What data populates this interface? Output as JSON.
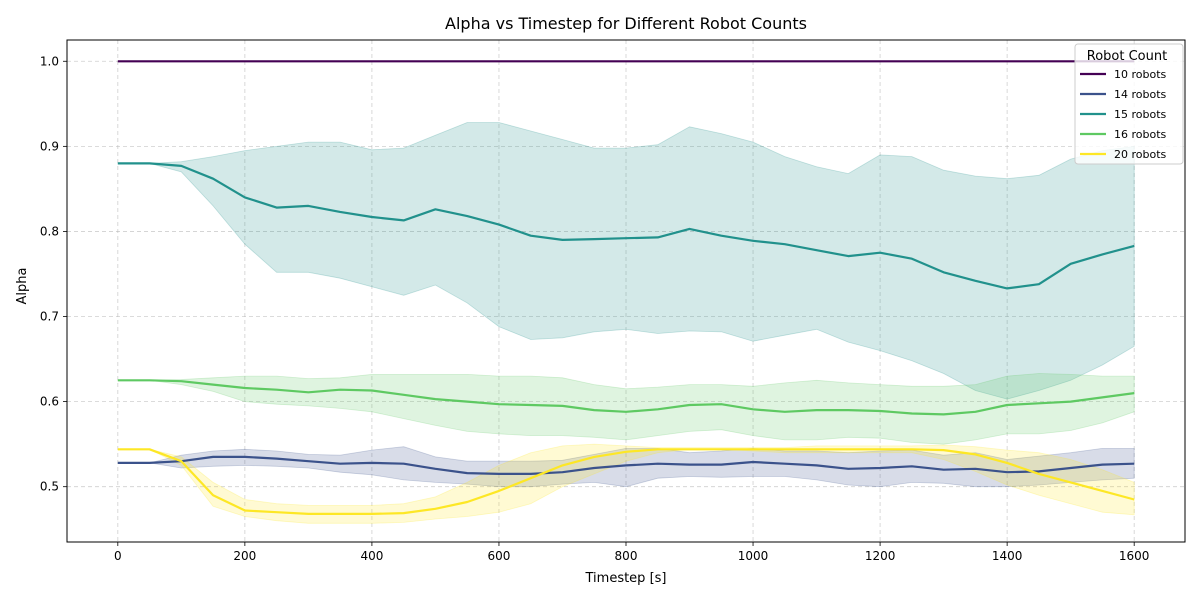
{
  "chart_data": {
    "type": "line",
    "title": "Alpha vs Timestep for Different Robot Counts",
    "xlabel": "Timestep [s]",
    "ylabel": "Alpha",
    "xlim": [
      -80,
      1680
    ],
    "ylim": [
      0.435,
      1.025
    ],
    "xticks": [
      0,
      200,
      400,
      600,
      800,
      1000,
      1200,
      1400,
      1600
    ],
    "yticks": [
      0.5,
      0.6,
      0.7,
      0.8,
      0.9,
      1.0
    ],
    "grid": true,
    "legend": {
      "title": "Robot Count",
      "placement": "top-right"
    },
    "x": [
      0,
      50,
      100,
      150,
      200,
      250,
      300,
      350,
      400,
      450,
      500,
      550,
      600,
      650,
      700,
      750,
      800,
      850,
      900,
      950,
      1000,
      1050,
      1100,
      1150,
      1200,
      1250,
      1300,
      1350,
      1400,
      1450,
      1500,
      1550,
      1600
    ],
    "series": [
      {
        "name": "10 robots",
        "color": "#440154",
        "values": [
          1.0,
          1.0,
          1.0,
          1.0,
          1.0,
          1.0,
          1.0,
          1.0,
          1.0,
          1.0,
          1.0,
          1.0,
          1.0,
          1.0,
          1.0,
          1.0,
          1.0,
          1.0,
          1.0,
          1.0,
          1.0,
          1.0,
          1.0,
          1.0,
          1.0,
          1.0,
          1.0,
          1.0,
          1.0,
          1.0,
          1.0,
          1.0,
          1.0
        ],
        "lower": [
          1.0,
          1.0,
          1.0,
          1.0,
          1.0,
          1.0,
          1.0,
          1.0,
          1.0,
          1.0,
          1.0,
          1.0,
          1.0,
          1.0,
          1.0,
          1.0,
          1.0,
          1.0,
          1.0,
          1.0,
          1.0,
          1.0,
          1.0,
          1.0,
          1.0,
          1.0,
          1.0,
          1.0,
          1.0,
          1.0,
          1.0,
          1.0,
          1.0
        ],
        "upper": [
          1.0,
          1.0,
          1.0,
          1.0,
          1.0,
          1.0,
          1.0,
          1.0,
          1.0,
          1.0,
          1.0,
          1.0,
          1.0,
          1.0,
          1.0,
          1.0,
          1.0,
          1.0,
          1.0,
          1.0,
          1.0,
          1.0,
          1.0,
          1.0,
          1.0,
          1.0,
          1.0,
          1.0,
          1.0,
          1.0,
          1.0,
          1.0,
          1.0
        ]
      },
      {
        "name": "14 robots",
        "color": "#3b528b",
        "values": [
          0.528,
          0.528,
          0.53,
          0.535,
          0.535,
          0.533,
          0.53,
          0.527,
          0.528,
          0.527,
          0.521,
          0.516,
          0.515,
          0.515,
          0.517,
          0.522,
          0.525,
          0.527,
          0.526,
          0.526,
          0.529,
          0.527,
          0.525,
          0.521,
          0.522,
          0.524,
          0.52,
          0.521,
          0.517,
          0.518,
          0.522,
          0.526,
          0.527
        ],
        "lower": [
          0.528,
          0.528,
          0.522,
          0.524,
          0.525,
          0.524,
          0.522,
          0.517,
          0.514,
          0.508,
          0.505,
          0.503,
          0.5,
          0.5,
          0.503,
          0.505,
          0.5,
          0.51,
          0.512,
          0.511,
          0.512,
          0.512,
          0.508,
          0.502,
          0.5,
          0.505,
          0.504,
          0.5,
          0.5,
          0.502,
          0.505,
          0.508,
          0.51
        ],
        "upper": [
          0.528,
          0.528,
          0.537,
          0.542,
          0.544,
          0.542,
          0.538,
          0.537,
          0.543,
          0.547,
          0.535,
          0.53,
          0.53,
          0.53,
          0.531,
          0.538,
          0.545,
          0.545,
          0.54,
          0.542,
          0.545,
          0.542,
          0.542,
          0.54,
          0.542,
          0.543,
          0.537,
          0.54,
          0.532,
          0.536,
          0.54,
          0.545,
          0.545
        ]
      },
      {
        "name": "15 robots",
        "color": "#21918c",
        "values": [
          0.88,
          0.88,
          0.877,
          0.862,
          0.84,
          0.828,
          0.83,
          0.823,
          0.817,
          0.813,
          0.826,
          0.818,
          0.808,
          0.795,
          0.79,
          0.791,
          0.792,
          0.793,
          0.803,
          0.795,
          0.789,
          0.785,
          0.778,
          0.771,
          0.775,
          0.768,
          0.752,
          0.742,
          0.733,
          0.738,
          0.762,
          0.773,
          0.783
        ],
        "lower": [
          0.88,
          0.88,
          0.87,
          0.83,
          0.785,
          0.752,
          0.752,
          0.745,
          0.735,
          0.725,
          0.737,
          0.716,
          0.688,
          0.673,
          0.675,
          0.682,
          0.685,
          0.68,
          0.683,
          0.682,
          0.671,
          0.678,
          0.685,
          0.67,
          0.66,
          0.648,
          0.633,
          0.613,
          0.603,
          0.613,
          0.625,
          0.643,
          0.665
        ],
        "upper": [
          0.88,
          0.88,
          0.882,
          0.888,
          0.895,
          0.9,
          0.905,
          0.905,
          0.896,
          0.898,
          0.913,
          0.928,
          0.928,
          0.918,
          0.908,
          0.898,
          0.898,
          0.902,
          0.923,
          0.915,
          0.905,
          0.888,
          0.876,
          0.868,
          0.89,
          0.888,
          0.872,
          0.865,
          0.862,
          0.866,
          0.885,
          0.895,
          0.9
        ]
      },
      {
        "name": "16 robots",
        "color": "#5ec962",
        "values": [
          0.625,
          0.625,
          0.624,
          0.62,
          0.616,
          0.614,
          0.611,
          0.614,
          0.613,
          0.608,
          0.603,
          0.6,
          0.597,
          0.596,
          0.595,
          0.59,
          0.588,
          0.591,
          0.596,
          0.597,
          0.591,
          0.588,
          0.59,
          0.59,
          0.589,
          0.586,
          0.585,
          0.588,
          0.596,
          0.598,
          0.6,
          0.605,
          0.61
        ],
        "lower": [
          0.625,
          0.625,
          0.62,
          0.612,
          0.6,
          0.597,
          0.595,
          0.592,
          0.588,
          0.58,
          0.572,
          0.565,
          0.562,
          0.56,
          0.56,
          0.558,
          0.555,
          0.56,
          0.565,
          0.567,
          0.56,
          0.555,
          0.555,
          0.558,
          0.557,
          0.552,
          0.55,
          0.555,
          0.562,
          0.562,
          0.566,
          0.575,
          0.588
        ],
        "upper": [
          0.625,
          0.625,
          0.626,
          0.628,
          0.63,
          0.63,
          0.627,
          0.628,
          0.632,
          0.632,
          0.632,
          0.632,
          0.63,
          0.63,
          0.628,
          0.62,
          0.615,
          0.617,
          0.62,
          0.62,
          0.618,
          0.622,
          0.625,
          0.622,
          0.62,
          0.618,
          0.618,
          0.62,
          0.63,
          0.633,
          0.632,
          0.63,
          0.63
        ]
      },
      {
        "name": "20 robots",
        "color": "#fde725",
        "values": [
          0.544,
          0.544,
          0.53,
          0.49,
          0.472,
          0.47,
          0.468,
          0.468,
          0.468,
          0.469,
          0.474,
          0.482,
          0.495,
          0.51,
          0.525,
          0.535,
          0.541,
          0.544,
          0.544,
          0.544,
          0.544,
          0.544,
          0.544,
          0.544,
          0.544,
          0.544,
          0.543,
          0.538,
          0.528,
          0.515,
          0.505,
          0.495,
          0.485
        ],
        "lower": [
          0.544,
          0.544,
          0.525,
          0.477,
          0.465,
          0.46,
          0.457,
          0.457,
          0.457,
          0.458,
          0.462,
          0.465,
          0.47,
          0.48,
          0.5,
          0.515,
          0.53,
          0.54,
          0.544,
          0.544,
          0.542,
          0.54,
          0.54,
          0.54,
          0.54,
          0.54,
          0.532,
          0.518,
          0.502,
          0.49,
          0.48,
          0.47,
          0.467
        ],
        "upper": [
          0.544,
          0.544,
          0.535,
          0.505,
          0.485,
          0.48,
          0.478,
          0.478,
          0.478,
          0.48,
          0.488,
          0.505,
          0.525,
          0.54,
          0.548,
          0.55,
          0.548,
          0.546,
          0.546,
          0.546,
          0.546,
          0.546,
          0.548,
          0.548,
          0.548,
          0.548,
          0.549,
          0.547,
          0.543,
          0.54,
          0.532,
          0.52,
          0.505
        ]
      }
    ]
  }
}
